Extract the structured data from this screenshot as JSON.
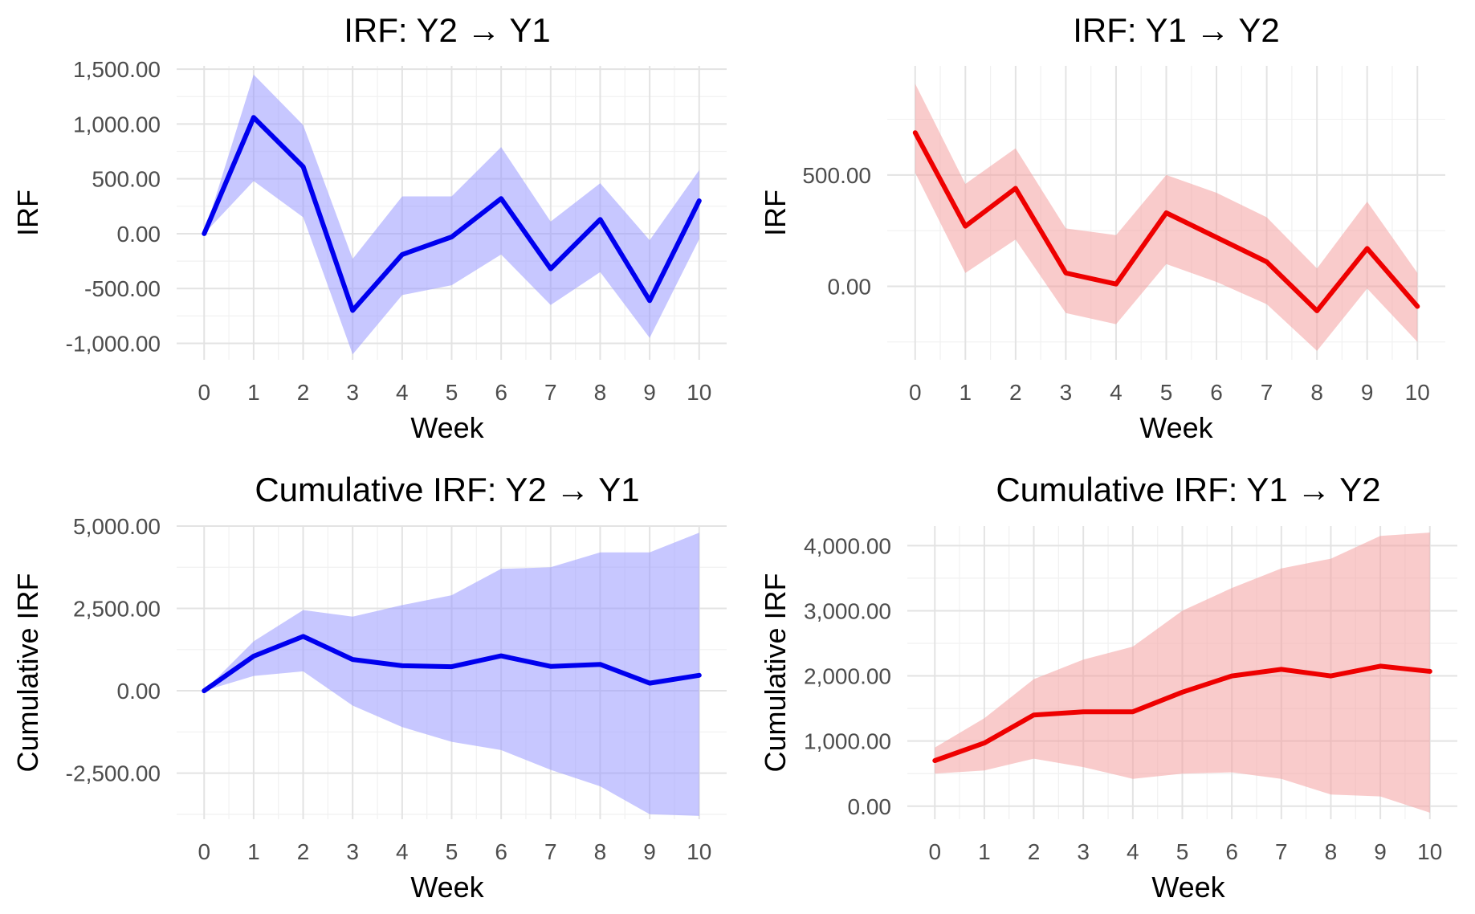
{
  "chart_data": [
    {
      "type": "line",
      "title": "IRF: Y2 → Y1",
      "xlabel": "Week",
      "ylabel": "IRF",
      "color": "#0000ee",
      "band_color": "#9999ff",
      "x": [
        0,
        1,
        2,
        3,
        4,
        5,
        6,
        7,
        8,
        9,
        10
      ],
      "xticks": [
        "0",
        "1",
        "2",
        "3",
        "4",
        "5",
        "6",
        "7",
        "8",
        "9",
        "10"
      ],
      "yticks": [
        -1000,
        -500,
        0,
        500,
        1000,
        1500
      ],
      "ytick_labels": [
        "-1,000.00",
        "-500.00",
        "0.00",
        "500.00",
        "1,000.00",
        "1,500.00"
      ],
      "ylim": [
        -1150,
        1530
      ],
      "series": [
        {
          "name": "IRF",
          "values": [
            0,
            1060,
            610,
            -700,
            -190,
            -30,
            320,
            -320,
            130,
            -610,
            300
          ]
        },
        {
          "name": "lower",
          "values": [
            0,
            480,
            150,
            -1100,
            -560,
            -470,
            -190,
            -650,
            -350,
            -950,
            -50
          ]
        },
        {
          "name": "upper",
          "values": [
            0,
            1450,
            990,
            -230,
            340,
            340,
            790,
            110,
            460,
            -60,
            580
          ]
        }
      ]
    },
    {
      "type": "line",
      "title": "IRF: Y1 → Y2",
      "xlabel": "Week",
      "ylabel": "IRF",
      "color": "#ee0000",
      "band_color": "#f4a0a0",
      "x": [
        0,
        1,
        2,
        3,
        4,
        5,
        6,
        7,
        8,
        9,
        10
      ],
      "xticks": [
        "0",
        "1",
        "2",
        "3",
        "4",
        "5",
        "6",
        "7",
        "8",
        "9",
        "10"
      ],
      "yticks": [
        0,
        500
      ],
      "ytick_labels": [
        "0.00",
        "500.00"
      ],
      "ylim": [
        -330,
        990
      ],
      "series": [
        {
          "name": "IRF",
          "values": [
            690,
            270,
            440,
            60,
            10,
            330,
            220,
            110,
            -110,
            170,
            -90
          ]
        },
        {
          "name": "lower",
          "values": [
            510,
            60,
            210,
            -120,
            -170,
            100,
            20,
            -80,
            -290,
            -10,
            -250
          ]
        },
        {
          "name": "upper",
          "values": [
            910,
            460,
            620,
            260,
            230,
            500,
            420,
            310,
            80,
            380,
            60
          ]
        }
      ]
    },
    {
      "type": "line",
      "title": "Cumulative IRF: Y2 → Y1",
      "xlabel": "Week",
      "ylabel": "Cumulative IRF",
      "color": "#0000ee",
      "band_color": "#9999ff",
      "x": [
        0,
        1,
        2,
        3,
        4,
        5,
        6,
        7,
        8,
        9,
        10
      ],
      "xticks": [
        "0",
        "1",
        "2",
        "3",
        "4",
        "5",
        "6",
        "7",
        "8",
        "9",
        "10"
      ],
      "yticks": [
        -2500,
        0,
        2500,
        5000
      ],
      "ytick_labels": [
        "-2,500.00",
        "0.00",
        "2,500.00",
        "5,000.00"
      ],
      "ylim": [
        -3900,
        5000
      ],
      "series": [
        {
          "name": "IRF",
          "values": [
            0,
            1050,
            1650,
            950,
            760,
            730,
            1060,
            740,
            800,
            230,
            470
          ]
        },
        {
          "name": "lower",
          "values": [
            0,
            450,
            590,
            -450,
            -1100,
            -1550,
            -1800,
            -2400,
            -2900,
            -3750,
            -3800
          ]
        },
        {
          "name": "upper",
          "values": [
            0,
            1500,
            2450,
            2250,
            2600,
            2900,
            3700,
            3750,
            4200,
            4200,
            4800
          ]
        }
      ]
    },
    {
      "type": "line",
      "title": "Cumulative IRF: Y1 → Y2",
      "xlabel": "Week",
      "ylabel": "Cumulative IRF",
      "color": "#ee0000",
      "band_color": "#f4a0a0",
      "x": [
        0,
        1,
        2,
        3,
        4,
        5,
        6,
        7,
        8,
        9,
        10
      ],
      "xticks": [
        "0",
        "1",
        "2",
        "3",
        "4",
        "5",
        "6",
        "7",
        "8",
        "9",
        "10"
      ],
      "yticks": [
        0,
        1000,
        2000,
        3000,
        4000
      ],
      "ytick_labels": [
        "0.00",
        "1,000.00",
        "2,000.00",
        "3,000.00",
        "4,000.00"
      ],
      "ylim": [
        -200,
        4300
      ],
      "series": [
        {
          "name": "IRF",
          "values": [
            700,
            970,
            1400,
            1450,
            1450,
            1750,
            2000,
            2100,
            2000,
            2150,
            2070
          ]
        },
        {
          "name": "lower",
          "values": [
            500,
            550,
            730,
            600,
            420,
            500,
            520,
            420,
            180,
            150,
            -100
          ]
        },
        {
          "name": "upper",
          "values": [
            900,
            1350,
            1950,
            2250,
            2450,
            3000,
            3350,
            3650,
            3800,
            4150,
            4200
          ]
        }
      ]
    }
  ]
}
